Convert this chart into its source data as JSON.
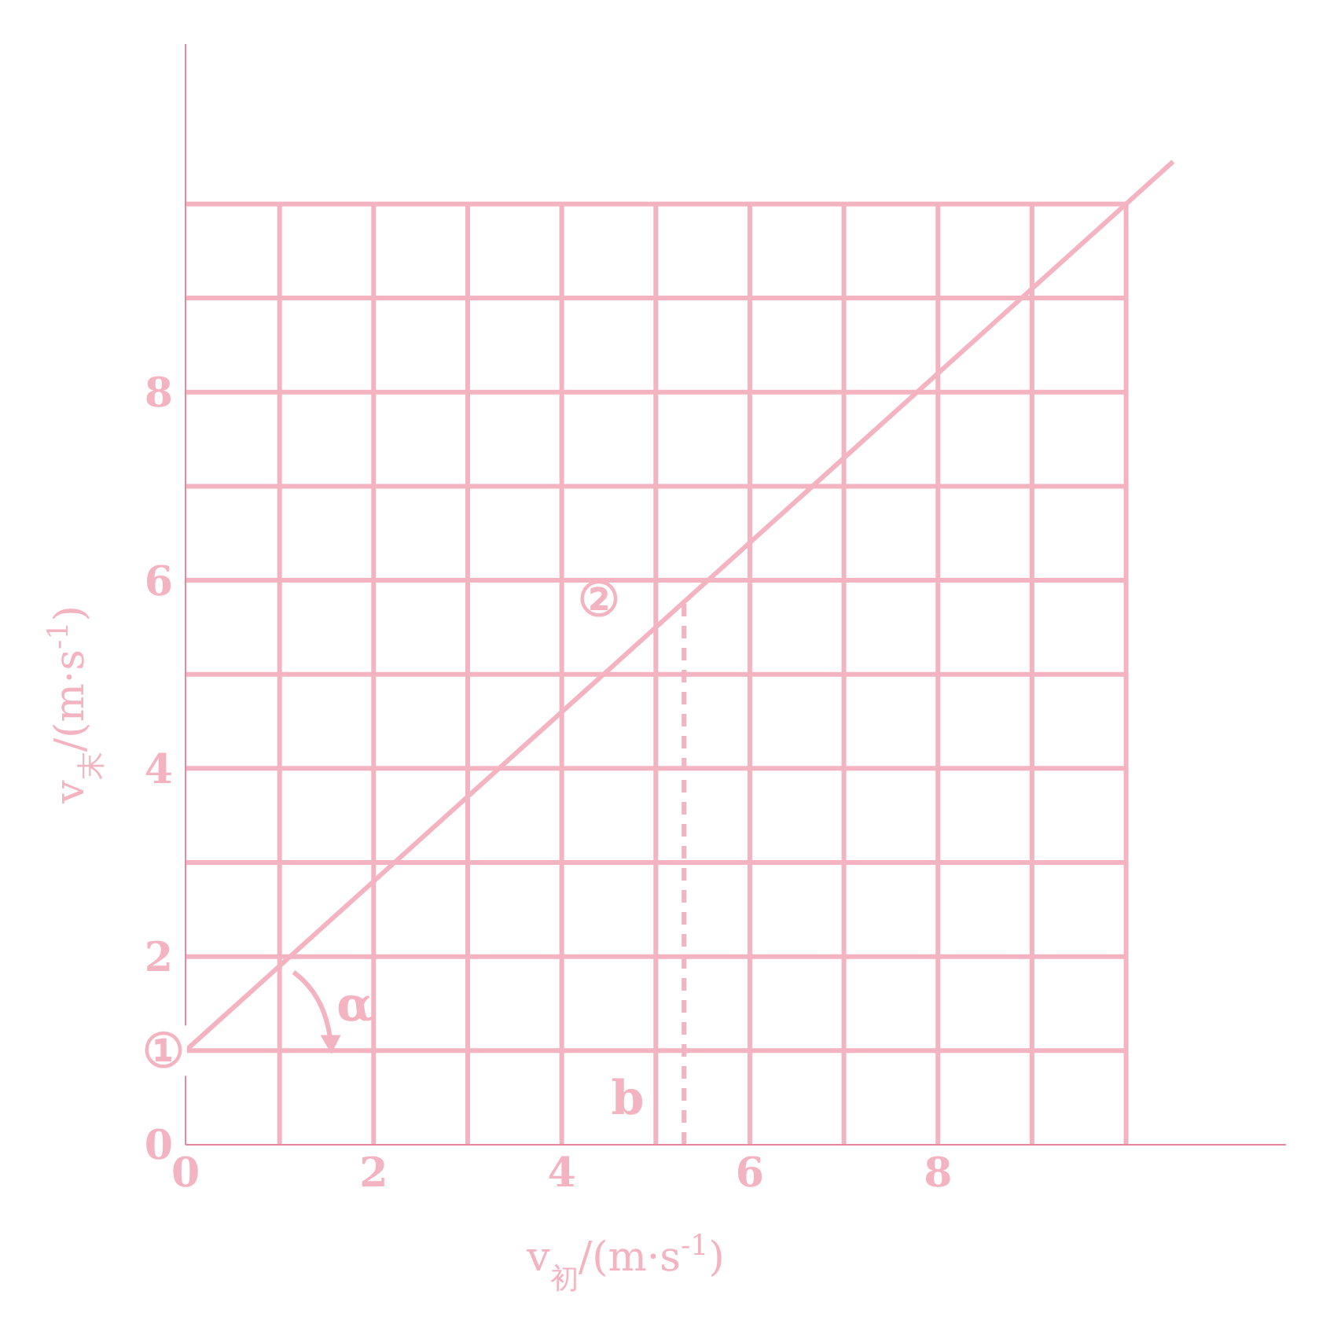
{
  "chart_data": {
    "type": "line",
    "xlabel": "v$_{初}$/(m·s$^{-1}$)",
    "ylabel": "v$_{末}$/(m·s$^{-1}$)",
    "xlim": [
      0,
      11.7
    ],
    "ylim": [
      0,
      11.7
    ],
    "xticks": [
      0,
      {
        "value": 1,
        "label": null
      },
      2,
      {
        "value": 3,
        "label": null
      },
      4,
      {
        "value": 5,
        "label": null
      },
      6,
      {
        "value": 7,
        "label": null
      },
      8,
      {
        "value": 9,
        "label": null
      },
      {
        "value": 10,
        "label": null
      }
    ],
    "yticks": [
      0,
      {
        "value": 1,
        "label": null
      },
      2,
      {
        "value": 3,
        "label": null
      },
      4,
      {
        "value": 5,
        "label": null
      },
      6,
      {
        "value": 7,
        "label": null
      },
      8,
      {
        "value": 9,
        "label": null
      },
      {
        "value": 10,
        "label": null
      }
    ],
    "grid": true,
    "series": [
      {
        "color": "#f4b3c0",
        "x": [
          0,
          10.5
        ],
        "values": [
          1,
          10.45
        ],
        "line_style": "solid"
      },
      {
        "color": "#f4b3c0",
        "x": [
          5.3,
          5.3
        ],
        "values": [
          0,
          5.77
        ],
        "line_style": "dashed"
      }
    ],
    "annotations": [
      {
        "text": "①",
        "x": 0,
        "y": 1
      },
      "②",
      "α",
      "b"
    ]
  }
}
